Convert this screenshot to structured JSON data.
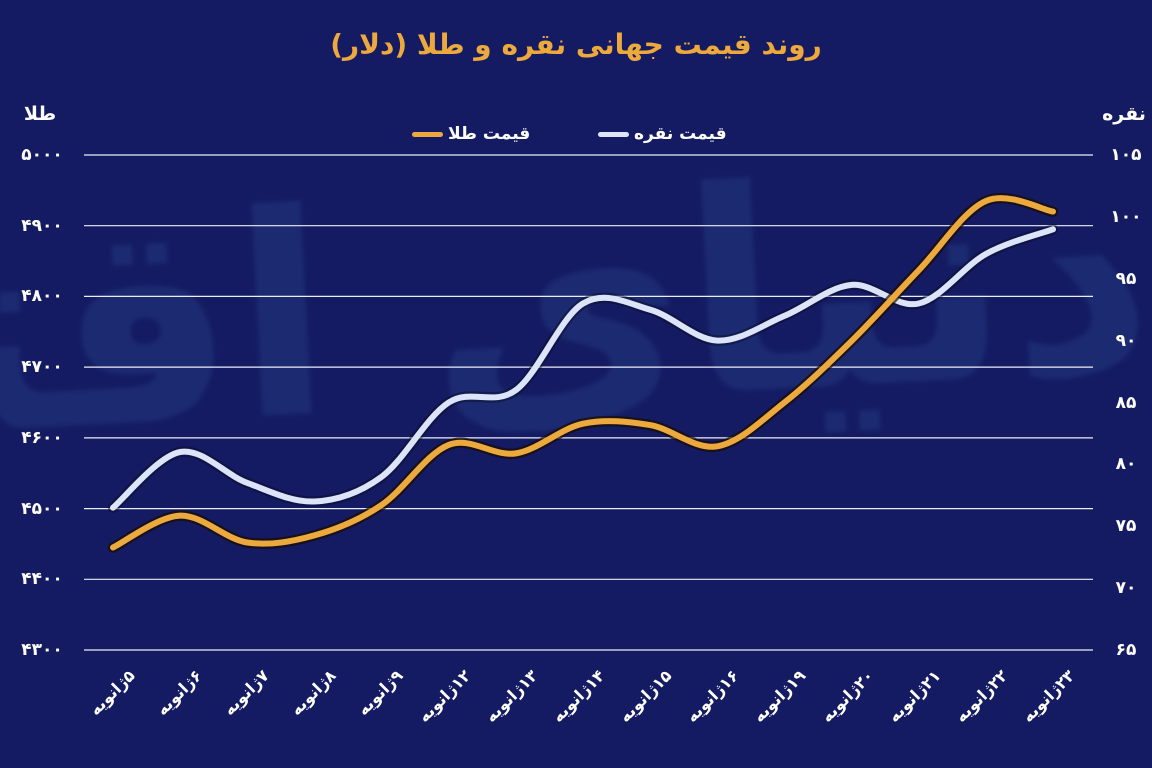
{
  "title": "روند قیمت جهانی نقره و طلا (دلار)",
  "watermark": "دنیای اقتصاد",
  "legend": {
    "gold_label": "قیمت طلا",
    "silver_label": "قیمت نقره",
    "position": "top"
  },
  "colors": {
    "background": "#141B62",
    "title": "#EDA93C",
    "gold_line": "#ECAA3E",
    "gold_line_edge": "rgba(25,12,0,0.7)",
    "silver_line": "#DCE4F9",
    "silver_line_edge": "rgba(8,12,35,0.45)",
    "grid": "#ECEEF6",
    "text": "#FFFFFF",
    "watermark": "#1C2A71"
  },
  "chart_data": {
    "type": "line",
    "title": "روند قیمت جهانی نقره و طلا (دلار)",
    "categories": [
      "۵ژانویه",
      "۶ژانویه",
      "۷ژانویه",
      "۸ژانویه",
      "۹ژانویه",
      "۱۲ژانویه",
      "۱۳ژانویه",
      "۱۴ژانویه",
      "۱۵ژانویه",
      "۱۶ژانویه",
      "۱۹ژانویه",
      "۲۰ژانویه",
      "۲۱ژانویه",
      "۲۲ژانویه",
      "۲۳ژانویه"
    ],
    "series": [
      {
        "name": "قیمت طلا",
        "axis": "left",
        "color": "#ECAA3E",
        "values": [
          4445,
          4490,
          4452,
          4462,
          4505,
          4590,
          4578,
          4620,
          4618,
          4588,
          4650,
          4737,
          4837,
          4935,
          4920
        ]
      },
      {
        "name": "قیمت نقره",
        "axis": "right",
        "color": "#DCE4F9",
        "values": [
          76.5,
          81,
          78.5,
          77,
          79,
          85,
          86,
          93,
          92.5,
          90,
          92,
          94.5,
          93,
          97,
          99
        ]
      }
    ],
    "left_axis": {
      "title": "طلا",
      "range": [
        4300,
        5000
      ],
      "tick_values": [
        5000,
        4900,
        4800,
        4700,
        4600,
        4500,
        4400,
        4300
      ],
      "tick_labels": [
        "۵۰۰۰",
        "۴۹۰۰",
        "۴۸۰۰",
        "۴۷۰۰",
        "۴۶۰۰",
        "۴۵۰۰",
        "۴۴۰۰",
        "۴۳۰۰"
      ]
    },
    "right_axis": {
      "title": "نقره",
      "range": [
        65,
        105
      ],
      "tick_values": [
        105,
        100,
        95,
        90,
        85,
        80,
        75,
        70,
        65
      ],
      "tick_labels": [
        "۱۰۵",
        "۱۰۰",
        "۹۵",
        "۹۰",
        "۸۵",
        "۸۰",
        "۷۵",
        "۷۰",
        "۶۵"
      ]
    },
    "grid": true,
    "legend_position": "top"
  }
}
